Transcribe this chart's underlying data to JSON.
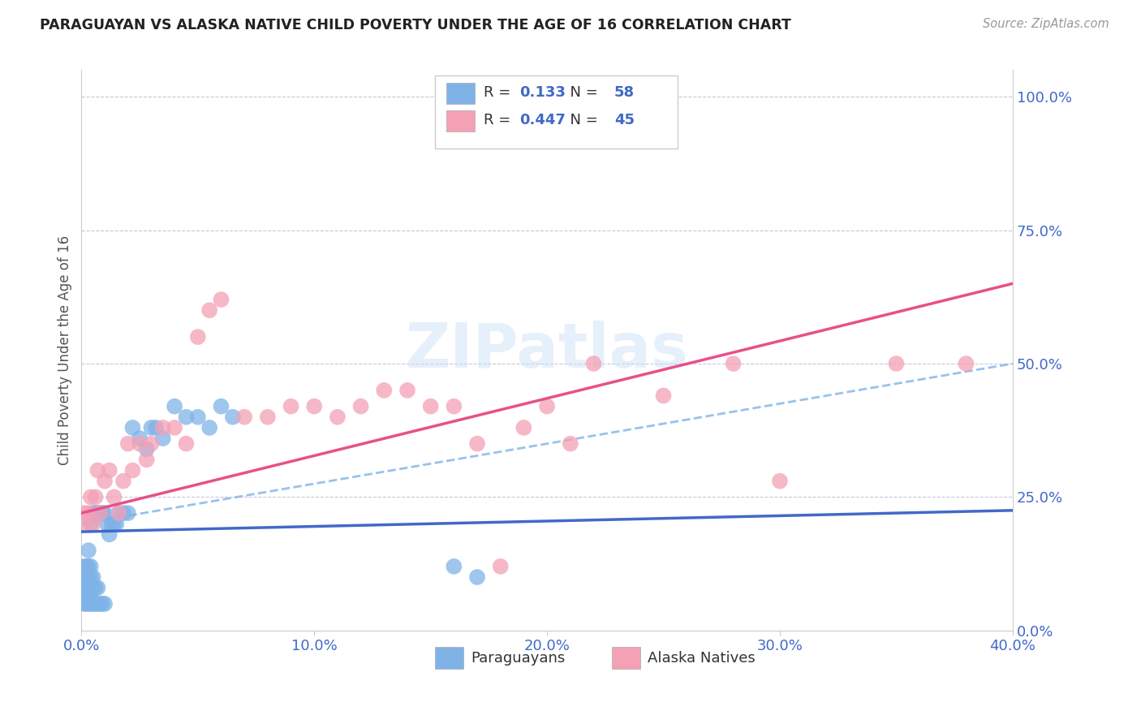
{
  "title": "PARAGUAYAN VS ALASKA NATIVE CHILD POVERTY UNDER THE AGE OF 16 CORRELATION CHART",
  "source": "Source: ZipAtlas.com",
  "ylabel": "Child Poverty Under the Age of 16",
  "paraguayan_color": "#7fb3e8",
  "alaska_color": "#f4a0b5",
  "paraguayan_line_color": "#4169c8",
  "alaska_line_color": "#e8508a",
  "dashed_line_color": "#7fb3e8",
  "paraguayan_R": 0.133,
  "paraguayan_N": 58,
  "alaska_R": 0.447,
  "alaska_N": 45,
  "watermark": "ZIPatlas",
  "xlim": [
    0.0,
    0.4
  ],
  "ylim": [
    0.0,
    1.05
  ],
  "xtick_vals": [
    0.0,
    0.1,
    0.2,
    0.3,
    0.4
  ],
  "ytick_vals": [
    0.0,
    0.25,
    0.5,
    0.75,
    1.0
  ],
  "paraguayan_x": [
    0.001,
    0.001,
    0.001,
    0.001,
    0.002,
    0.002,
    0.002,
    0.002,
    0.002,
    0.003,
    0.003,
    0.003,
    0.003,
    0.003,
    0.003,
    0.004,
    0.004,
    0.004,
    0.004,
    0.004,
    0.005,
    0.005,
    0.005,
    0.005,
    0.006,
    0.006,
    0.006,
    0.007,
    0.007,
    0.007,
    0.008,
    0.008,
    0.009,
    0.009,
    0.01,
    0.01,
    0.011,
    0.012,
    0.013,
    0.014,
    0.015,
    0.016,
    0.018,
    0.02,
    0.022,
    0.025,
    0.028,
    0.03,
    0.032,
    0.035,
    0.04,
    0.045,
    0.05,
    0.055,
    0.06,
    0.065,
    0.16,
    0.17
  ],
  "paraguayan_y": [
    0.05,
    0.08,
    0.1,
    0.12,
    0.05,
    0.07,
    0.08,
    0.1,
    0.12,
    0.05,
    0.07,
    0.08,
    0.1,
    0.12,
    0.15,
    0.05,
    0.07,
    0.1,
    0.12,
    0.2,
    0.05,
    0.08,
    0.1,
    0.22,
    0.05,
    0.08,
    0.22,
    0.05,
    0.08,
    0.22,
    0.05,
    0.22,
    0.05,
    0.22,
    0.05,
    0.22,
    0.2,
    0.18,
    0.2,
    0.2,
    0.2,
    0.22,
    0.22,
    0.22,
    0.38,
    0.36,
    0.34,
    0.38,
    0.38,
    0.36,
    0.42,
    0.4,
    0.4,
    0.38,
    0.42,
    0.4,
    0.12,
    0.1
  ],
  "alaska_x": [
    0.001,
    0.002,
    0.003,
    0.004,
    0.005,
    0.006,
    0.007,
    0.008,
    0.01,
    0.012,
    0.014,
    0.016,
    0.018,
    0.02,
    0.022,
    0.025,
    0.028,
    0.03,
    0.035,
    0.04,
    0.045,
    0.05,
    0.055,
    0.06,
    0.07,
    0.08,
    0.09,
    0.1,
    0.11,
    0.12,
    0.13,
    0.14,
    0.15,
    0.16,
    0.17,
    0.18,
    0.19,
    0.2,
    0.21,
    0.22,
    0.25,
    0.28,
    0.3,
    0.35,
    0.38
  ],
  "alaska_y": [
    0.22,
    0.2,
    0.22,
    0.25,
    0.2,
    0.25,
    0.3,
    0.22,
    0.28,
    0.3,
    0.25,
    0.22,
    0.28,
    0.35,
    0.3,
    0.35,
    0.32,
    0.35,
    0.38,
    0.38,
    0.35,
    0.55,
    0.6,
    0.62,
    0.4,
    0.4,
    0.42,
    0.42,
    0.4,
    0.42,
    0.45,
    0.45,
    0.42,
    0.42,
    0.35,
    0.12,
    0.38,
    0.42,
    0.35,
    0.5,
    0.44,
    0.5,
    0.28,
    0.5,
    0.5
  ],
  "par_line_x0": 0.0,
  "par_line_x1": 0.4,
  "par_line_y0": 0.185,
  "par_line_y1": 0.225,
  "ala_line_x0": 0.0,
  "ala_line_x1": 0.4,
  "ala_line_y0": 0.22,
  "ala_line_y1": 0.65,
  "dash_line_x0": 0.0,
  "dash_line_x1": 0.4,
  "dash_line_y0": 0.2,
  "dash_line_y1": 0.5
}
